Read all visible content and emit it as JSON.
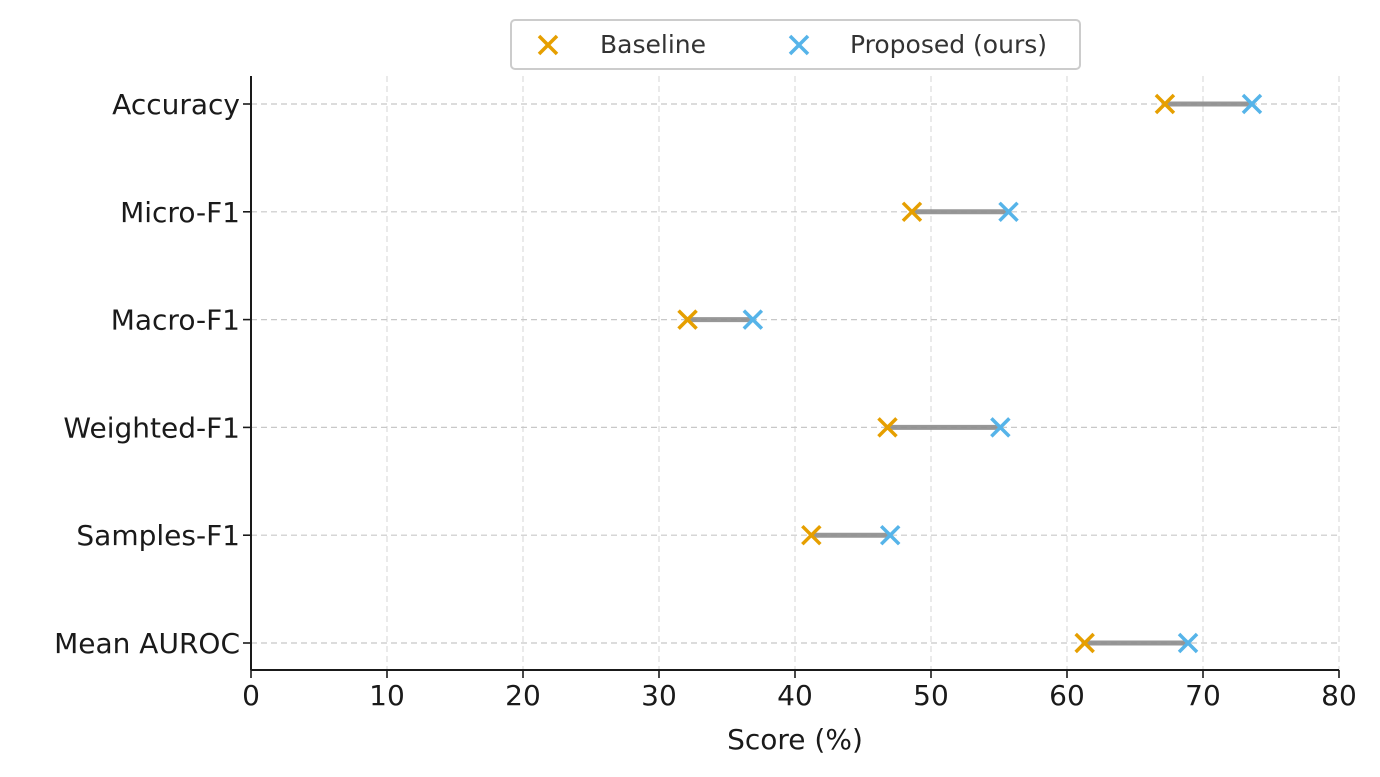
{
  "chart_data": {
    "type": "dumbbell",
    "xlabel": "Score (%)",
    "xlim": [
      0,
      80
    ],
    "xticks": [
      "0",
      "10",
      "20",
      "30",
      "40",
      "50",
      "60",
      "70",
      "80"
    ],
    "categories": [
      "Accuracy",
      "Micro-F1",
      "Macro-F1",
      "Weighted-F1",
      "Samples-F1",
      "Mean AUROC"
    ],
    "series": [
      {
        "name": "Baseline",
        "color": "#E69F00",
        "marker": "x",
        "values": [
          67.2,
          48.6,
          32.1,
          46.8,
          41.2,
          61.3
        ]
      },
      {
        "name": "Proposed (ours)",
        "color": "#56B4E9",
        "marker": "x",
        "values": [
          73.6,
          55.7,
          36.9,
          55.1,
          47.0,
          68.9
        ]
      }
    ],
    "connector_color": "#8c8c8c",
    "grid": true,
    "legend_position": "top-center"
  }
}
